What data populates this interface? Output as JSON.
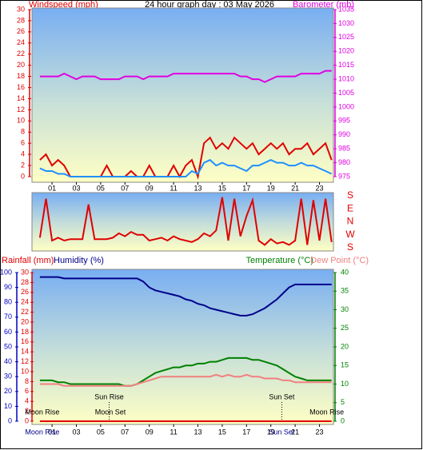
{
  "chart_data": [
    {
      "type": "line",
      "title": "24 hour graph day : 03 May 2026",
      "y_label": "Windspeed (mph)",
      "y2_label": "Barometer (mb)",
      "y_color": "#e00000",
      "y2_color": "#e000e0",
      "x": [
        0,
        0.5,
        1,
        1.5,
        2,
        2.5,
        3,
        3.5,
        4,
        4.5,
        5,
        5.5,
        6,
        6.5,
        7,
        7.5,
        8,
        8.5,
        9,
        9.5,
        10,
        10.5,
        11,
        11.5,
        12,
        12.5,
        13,
        13.5,
        14,
        14.5,
        15,
        15.5,
        16,
        16.5,
        17,
        17.5,
        18,
        18.5,
        19,
        19.5,
        20,
        20.5,
        21,
        21.5,
        22,
        22.5,
        23,
        23.5,
        24
      ],
      "xlim": [
        -0.65,
        24.15
      ],
      "xticks": [
        {
          "value": 1,
          "label": "01"
        },
        {
          "value": 3,
          "label": "03"
        },
        {
          "value": 5,
          "label": "05"
        },
        {
          "value": 7,
          "label": "07"
        },
        {
          "value": 9,
          "label": "09"
        },
        11,
        13,
        15,
        17,
        19,
        21,
        23
      ],
      "ylim": [
        0,
        30
      ],
      "yticks": [
        0,
        2,
        4,
        6,
        8,
        10,
        12,
        14,
        16,
        18,
        20,
        22,
        24,
        26,
        28,
        30
      ],
      "y2lim": [
        975,
        1035
      ],
      "y2ticks": [
        975,
        980,
        985,
        990,
        995,
        1000,
        1005,
        1010,
        1015,
        1020,
        1025,
        1030,
        1035
      ],
      "series": [
        {
          "color": "#e00000",
          "axis": "y",
          "values": [
            3,
            4,
            2,
            3,
            2,
            0,
            0,
            0,
            0,
            0,
            0,
            2,
            0,
            0,
            0,
            1,
            0,
            0,
            2,
            0,
            0,
            0,
            2,
            0,
            2,
            3,
            0,
            6,
            7,
            5,
            6,
            5,
            7,
            6,
            5,
            6,
            4,
            5,
            6,
            5,
            6,
            4,
            5,
            5,
            6,
            4,
            5,
            6,
            3
          ]
        },
        {
          "color": "#1e8fff",
          "axis": "y",
          "values": [
            1.5,
            1,
            1,
            0.5,
            0.5,
            0,
            0,
            0,
            0,
            0,
            0,
            0,
            0,
            0,
            0,
            0,
            0,
            0,
            0,
            0,
            0,
            0,
            0,
            0,
            0,
            1,
            0.5,
            2.5,
            3,
            2,
            2.5,
            2,
            2,
            1.5,
            1,
            2,
            2,
            2.5,
            3,
            2.5,
            2.5,
            2,
            2,
            2.5,
            2,
            2,
            1.5,
            1,
            0.5
          ]
        },
        {
          "color": "#e000e0",
          "axis": "y2",
          "values": [
            1011,
            1011,
            1011,
            1011,
            1012,
            1011,
            1010,
            1011,
            1011,
            1011,
            1010,
            1010,
            1010,
            1010,
            1011,
            1011,
            1011,
            1010,
            1011,
            1011,
            1011,
            1011,
            1012,
            1012,
            1012,
            1012,
            1012,
            1012,
            1012,
            1012,
            1012,
            1012,
            1012,
            1011,
            1011,
            1010,
            1010,
            1009,
            1010,
            1011,
            1011,
            1011,
            1011,
            1012,
            1012,
            1012,
            1012,
            1013,
            1013
          ]
        }
      ]
    },
    {
      "type": "line",
      "y_color": "#e00000",
      "x": [
        0,
        0.5,
        1,
        1.5,
        2,
        2.5,
        3,
        3.5,
        4,
        4.5,
        5,
        5.5,
        6,
        6.5,
        7,
        7.5,
        8,
        8.5,
        9,
        9.5,
        10,
        10.5,
        11,
        11.5,
        12,
        12.5,
        13,
        13.5,
        14,
        14.5,
        15,
        15.5,
        16,
        16.5,
        17,
        17.5,
        18,
        18.5,
        19,
        19.5,
        20,
        20.5,
        21,
        21.5,
        22,
        22.5,
        23,
        23.5,
        24
      ],
      "xlim": [
        -0.65,
        24.15
      ],
      "ylim": [
        180,
        540
      ],
      "yticks": [
        {
          "value": 540,
          "label": "S"
        },
        {
          "value": 450,
          "label": "E"
        },
        {
          "value": 360,
          "label": "N"
        },
        {
          "value": 270,
          "label": "W"
        },
        {
          "value": 180,
          "label": "S"
        }
      ],
      "series": [
        {
          "color": "#e00000",
          "axis": "y",
          "values": [
            250,
            520,
            230,
            250,
            230,
            240,
            240,
            240,
            480,
            240,
            240,
            240,
            250,
            280,
            260,
            290,
            270,
            270,
            230,
            240,
            250,
            230,
            260,
            240,
            230,
            220,
            240,
            280,
            260,
            300,
            530,
            230,
            520,
            260,
            400,
            510,
            230,
            200,
            240,
            210,
            220,
            200,
            230,
            520,
            200,
            510,
            230,
            520,
            220
          ]
        }
      ]
    },
    {
      "type": "line",
      "y_color": "#0000c0",
      "y2_color": "#008000",
      "y3_color": "#e00000",
      "x": [
        0,
        0.5,
        1,
        1.5,
        2,
        2.5,
        3,
        3.5,
        4,
        4.5,
        5,
        5.5,
        6,
        6.5,
        7,
        7.5,
        8,
        8.5,
        9,
        9.5,
        10,
        10.5,
        11,
        11.5,
        12,
        12.5,
        13,
        13.5,
        14,
        14.5,
        15,
        15.5,
        16,
        16.5,
        17,
        17.5,
        18,
        18.5,
        19,
        19.5,
        20,
        20.5,
        21,
        21.5,
        22,
        22.5,
        23,
        23.5,
        24
      ],
      "xlim": [
        -0.65,
        24.15
      ],
      "xticks": [
        {
          "value": 1,
          "label": "01"
        },
        {
          "value": 3,
          "label": "03"
        },
        {
          "value": 5,
          "label": "05"
        },
        {
          "value": 7,
          "label": "07"
        },
        {
          "value": 9,
          "label": "09"
        },
        11,
        13,
        15,
        17,
        19,
        21,
        23
      ],
      "ylim": [
        0,
        100
      ],
      "yticks": [
        0,
        10,
        20,
        30,
        40,
        50,
        60,
        70,
        80,
        90,
        100
      ],
      "y2lim": [
        0,
        40
      ],
      "y2ticks": [
        0,
        5,
        10,
        15,
        20,
        25,
        30,
        35,
        40
      ],
      "y3lim": [
        0,
        30
      ],
      "y3ticks": [
        0,
        2,
        4,
        6,
        8,
        10,
        12,
        14,
        16,
        18,
        20,
        22,
        24,
        26,
        28,
        30
      ],
      "series": [
        {
          "name": "Rainfall (mm)",
          "color": "#e00000",
          "axis": "y3",
          "values": [
            0,
            0,
            0,
            0,
            0,
            0,
            0,
            0,
            0,
            0,
            0,
            0,
            0,
            0,
            0,
            0,
            0,
            0,
            0,
            0,
            0,
            0,
            0,
            0,
            0,
            0,
            0,
            0,
            0,
            0,
            0,
            0,
            0,
            0,
            0,
            0,
            0,
            0,
            0,
            0,
            0,
            0,
            0,
            0,
            0,
            0,
            0,
            0,
            0
          ]
        },
        {
          "name": "Humidity (%)",
          "color": "#00008b",
          "axis": "y",
          "values": [
            97,
            97,
            97,
            97,
            96,
            96,
            96,
            96,
            96,
            96,
            96,
            96,
            96,
            96,
            96,
            96,
            96,
            94,
            90,
            88,
            87,
            86,
            85,
            84,
            82,
            81,
            79,
            78,
            76,
            75,
            74,
            73,
            72,
            71,
            71,
            72,
            74,
            76,
            79,
            82,
            86,
            90,
            92,
            92,
            92,
            92,
            92,
            92,
            92
          ]
        },
        {
          "name": "Temperature (°C)",
          "color": "#008000",
          "axis": "y2",
          "values": [
            11,
            11,
            11,
            10.5,
            10.5,
            10,
            10,
            10,
            10,
            10,
            10,
            10,
            10,
            10,
            9.5,
            9.5,
            10,
            11,
            12,
            13,
            13.5,
            14,
            14.5,
            14.5,
            15,
            15,
            15.5,
            15.5,
            16,
            16,
            16.5,
            17,
            17,
            17,
            17,
            16.5,
            16.5,
            16,
            15.5,
            15,
            14,
            13,
            12,
            11.5,
            11,
            11,
            11,
            11,
            11
          ]
        },
        {
          "name": "Dew Point (°C)",
          "color": "#f08080",
          "axis": "y2",
          "values": [
            10,
            10,
            10,
            10,
            9.5,
            9.5,
            9.5,
            9.5,
            9.5,
            9.5,
            9.5,
            9.5,
            9.5,
            9.5,
            9.5,
            9.5,
            10,
            10.5,
            11,
            11.5,
            12,
            12,
            12,
            12,
            12,
            12,
            12,
            12,
            12,
            12.5,
            12,
            12.5,
            12,
            12,
            12.5,
            12,
            12,
            11.5,
            11.5,
            11.5,
            11,
            11,
            10.5,
            10.5,
            10.5,
            10.5,
            10.5,
            10.5,
            10.5
          ]
        }
      ],
      "sun_events": [
        {
          "label": "Sun Rise",
          "hour": 5.7
        },
        {
          "label": "Sun Set",
          "hour": 19.9
        }
      ],
      "moon_events": [
        {
          "label": "Moon Rise",
          "hour": 0.2
        },
        {
          "label": "Moon Set",
          "hour": 5.8
        },
        {
          "label": "Moon Rise",
          "hour": 23.6
        }
      ],
      "axis_events": [
        {
          "label": "Moon Rise",
          "hour": 0.2
        },
        {
          "label": "Sun Set",
          "hour": 19.9
        }
      ]
    }
  ]
}
